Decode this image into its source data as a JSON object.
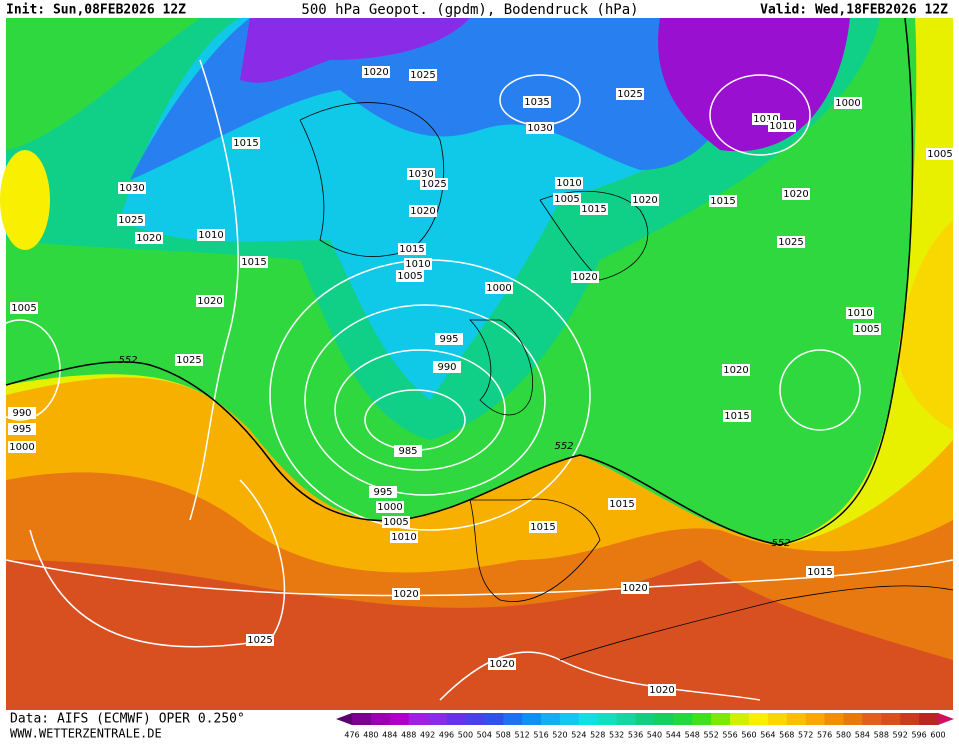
{
  "header": {
    "init": "Init: Sun,08FEB2026 12Z",
    "title": "500 hPa Geopot. (gpdm), Bodendruck (hPa)",
    "valid": "Valid: Wed,18FEB2026 12Z"
  },
  "footer": {
    "source": "Data: AIFS (ECMWF) OPER 0.250°",
    "website": "WWW.WETTERZENTRALE.DE"
  },
  "colorbar": {
    "ticks": [
      476,
      480,
      484,
      488,
      492,
      496,
      500,
      504,
      508,
      512,
      516,
      520,
      524,
      528,
      532,
      536,
      540,
      544,
      548,
      552,
      556,
      560,
      564,
      568,
      572,
      576,
      580,
      584,
      588,
      592,
      596,
      600
    ],
    "colors": [
      "#5a0070",
      "#7a0090",
      "#9a00b0",
      "#b000c8",
      "#a020e0",
      "#8a2be8",
      "#6a30f0",
      "#4a40f0",
      "#3050f0",
      "#2070f0",
      "#1090f0",
      "#10b0f0",
      "#10c8f0",
      "#10e0e0",
      "#10e0c0",
      "#10d8a0",
      "#10d080",
      "#10d060",
      "#20d840",
      "#40e020",
      "#80e800",
      "#d0f000",
      "#f8f000",
      "#f8d800",
      "#f8c000",
      "#f8a800",
      "#f09000",
      "#e87810",
      "#e06020",
      "#d85020",
      "#c83c20",
      "#b82820",
      "#d01060"
    ]
  },
  "contour_552_labels": [
    "552",
    "552",
    "552"
  ],
  "isobar_labels": [
    "1020",
    "1025",
    "1035",
    "1030",
    "1025",
    "1000",
    "1010",
    "1010",
    "1015",
    "1030",
    "1030",
    "1025",
    "1010",
    "1005",
    "1015",
    "1020",
    "1015",
    "1020",
    "1005",
    "1020",
    "1025",
    "1020",
    "1010",
    "1015",
    "1015",
    "1010",
    "1005",
    "1025",
    "1020",
    "1000",
    "1020",
    "1010",
    "1005",
    "995",
    "990",
    "1020",
    "1025",
    "1015",
    "985",
    "995",
    "1000",
    "1005",
    "1010",
    "1015",
    "1015",
    "1020",
    "1020",
    "1015",
    "1025",
    "1020",
    "1020",
    "1005",
    "990",
    "995",
    "1000"
  ]
}
